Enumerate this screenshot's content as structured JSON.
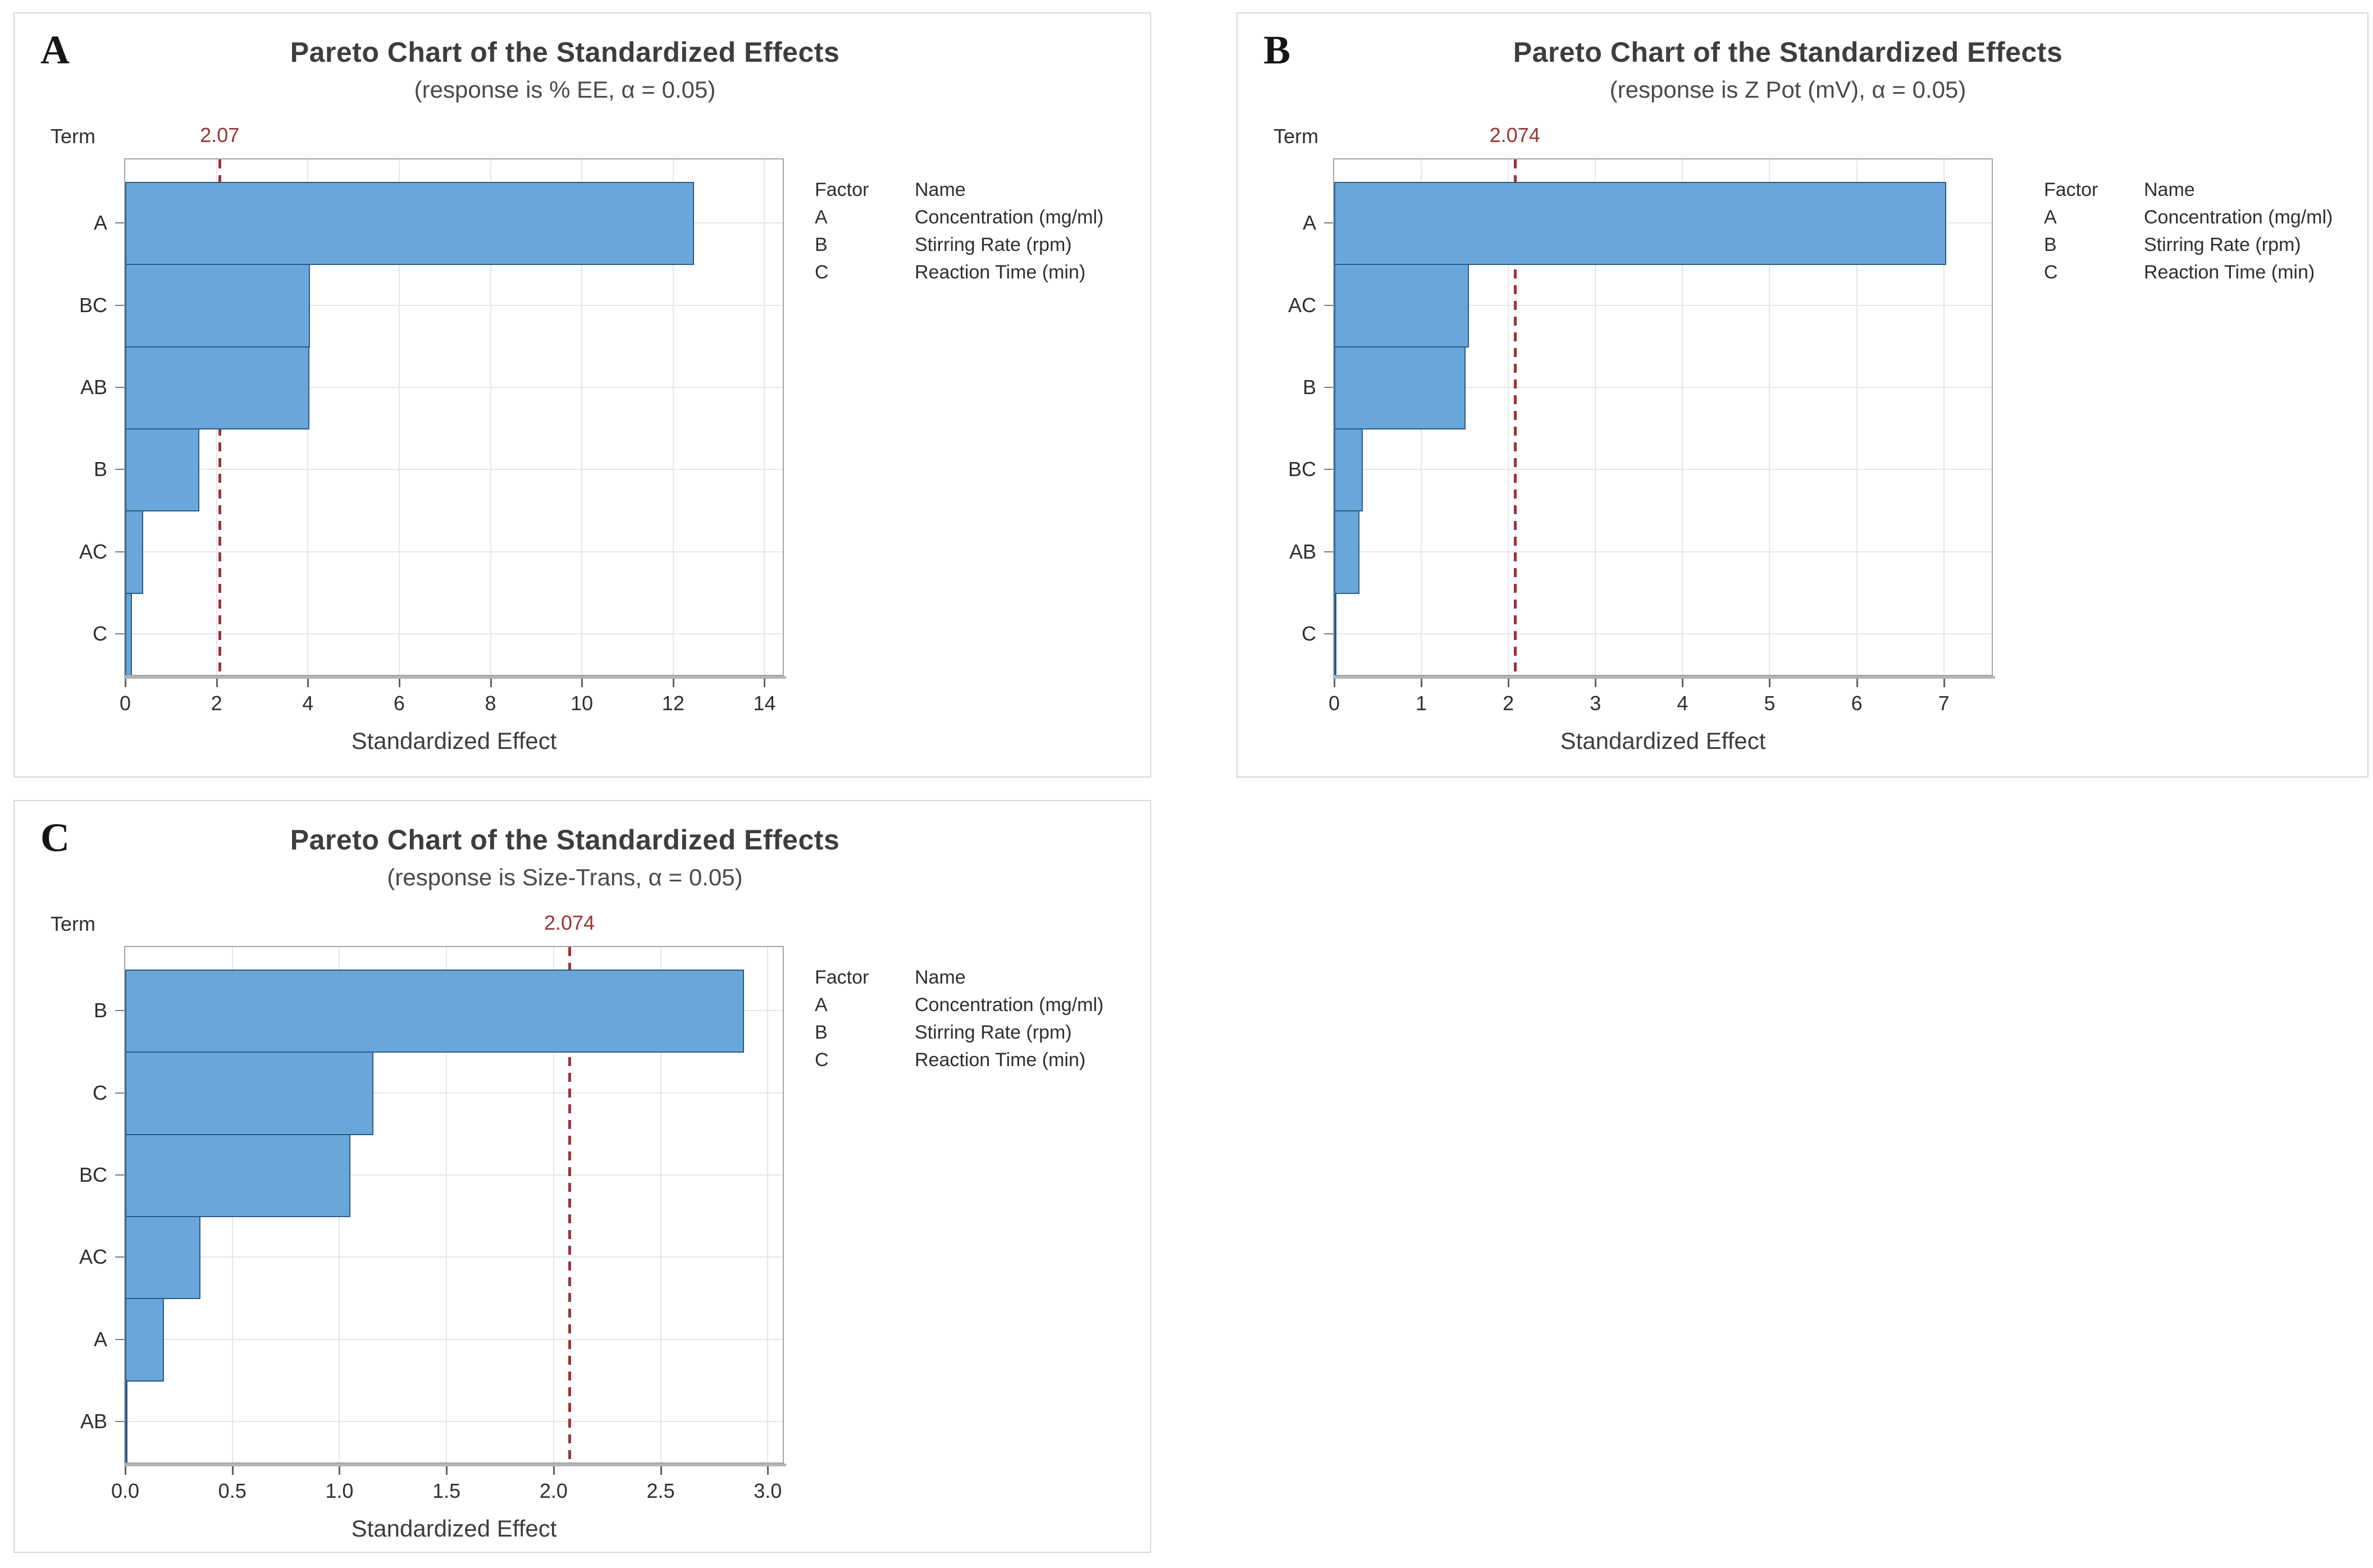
{
  "colors": {
    "bar_fill": "#69a7db",
    "bar_edge": "#2b5a85",
    "reference_line": "#9d3235",
    "reference_label": "#9c3434",
    "gridline": "#e6e6e6",
    "plot_border": "#a3a3a3",
    "title_text": "#3d3d3d",
    "card_border": "#d6d6d6"
  },
  "chart_data": [
    {
      "type": "bar",
      "orientation": "horizontal",
      "panel": "A",
      "title": "Pareto Chart of the Standardized Effects",
      "subtitle": "(response is % EE, α = 0.05)",
      "y_axis_label": "Term",
      "xlabel": "Standardized Effect",
      "categories": [
        "A",
        "BC",
        "AB",
        "B",
        "AC",
        "C"
      ],
      "values": [
        12.46,
        4.05,
        4.03,
        1.62,
        0.39,
        0.15
      ],
      "reference_line": {
        "value": 2.07,
        "label": "2.07"
      },
      "xlim": [
        0,
        14.4
      ],
      "xticks": [
        0,
        2,
        4,
        6,
        8,
        10,
        12,
        14
      ],
      "xtick_labels": [
        "0",
        "2",
        "4",
        "6",
        "8",
        "10",
        "12",
        "14"
      ],
      "grid": true,
      "legend_position": "right",
      "legend": {
        "factor_header": "Factor",
        "name_header": "Name",
        "rows": [
          {
            "factor": "A",
            "name": "Concentration (mg/ml)"
          },
          {
            "factor": "B",
            "name": "Stirring Rate (rpm)"
          },
          {
            "factor": "C",
            "name": "Reaction Time (min)"
          }
        ]
      }
    },
    {
      "type": "bar",
      "orientation": "horizontal",
      "panel": "B",
      "title": "Pareto Chart of the Standardized Effects",
      "subtitle": "(response is Z Pot (mV), α = 0.05)",
      "y_axis_label": "Term",
      "xlabel": "Standardized Effect",
      "categories": [
        "A",
        "AC",
        "B",
        "BC",
        "AB",
        "C"
      ],
      "values": [
        7.03,
        1.55,
        1.51,
        0.33,
        0.29,
        0.02
      ],
      "reference_line": {
        "value": 2.074,
        "label": "2.074"
      },
      "xlim": [
        0,
        7.55
      ],
      "xticks": [
        0,
        1,
        2,
        3,
        4,
        5,
        6,
        7
      ],
      "xtick_labels": [
        "0",
        "1",
        "2",
        "3",
        "4",
        "5",
        "6",
        "7"
      ],
      "grid": true,
      "legend_position": "right",
      "legend": {
        "factor_header": "Factor",
        "name_header": "Name",
        "rows": [
          {
            "factor": "A",
            "name": "Concentration (mg/ml)"
          },
          {
            "factor": "B",
            "name": "Stirring Rate (rpm)"
          },
          {
            "factor": "C",
            "name": "Reaction Time (min)"
          }
        ]
      }
    },
    {
      "type": "bar",
      "orientation": "horizontal",
      "panel": "C",
      "title": "Pareto Chart of the Standardized Effects",
      "subtitle": "(response is Size-Trans, α = 0.05)",
      "y_axis_label": "Term",
      "xlabel": "Standardized Effect",
      "categories": [
        "B",
        "C",
        "BC",
        "AC",
        "A",
        "AB"
      ],
      "values": [
        2.89,
        1.16,
        1.05,
        0.35,
        0.18,
        0.01
      ],
      "reference_line": {
        "value": 2.074,
        "label": "2.074"
      },
      "xlim": [
        0,
        3.07
      ],
      "xticks": [
        0,
        0.5,
        1,
        1.5,
        2,
        2.5,
        3
      ],
      "xtick_labels": [
        "0.0",
        "0.5",
        "1.0",
        "1.5",
        "2.0",
        "2.5",
        "3.0"
      ],
      "grid": true,
      "legend_position": "right",
      "legend": {
        "factor_header": "Factor",
        "name_header": "Name",
        "rows": [
          {
            "factor": "A",
            "name": "Concentration (mg/ml)"
          },
          {
            "factor": "B",
            "name": "Stirring Rate (rpm)"
          },
          {
            "factor": "C",
            "name": "Reaction Time (min)"
          }
        ]
      }
    }
  ]
}
